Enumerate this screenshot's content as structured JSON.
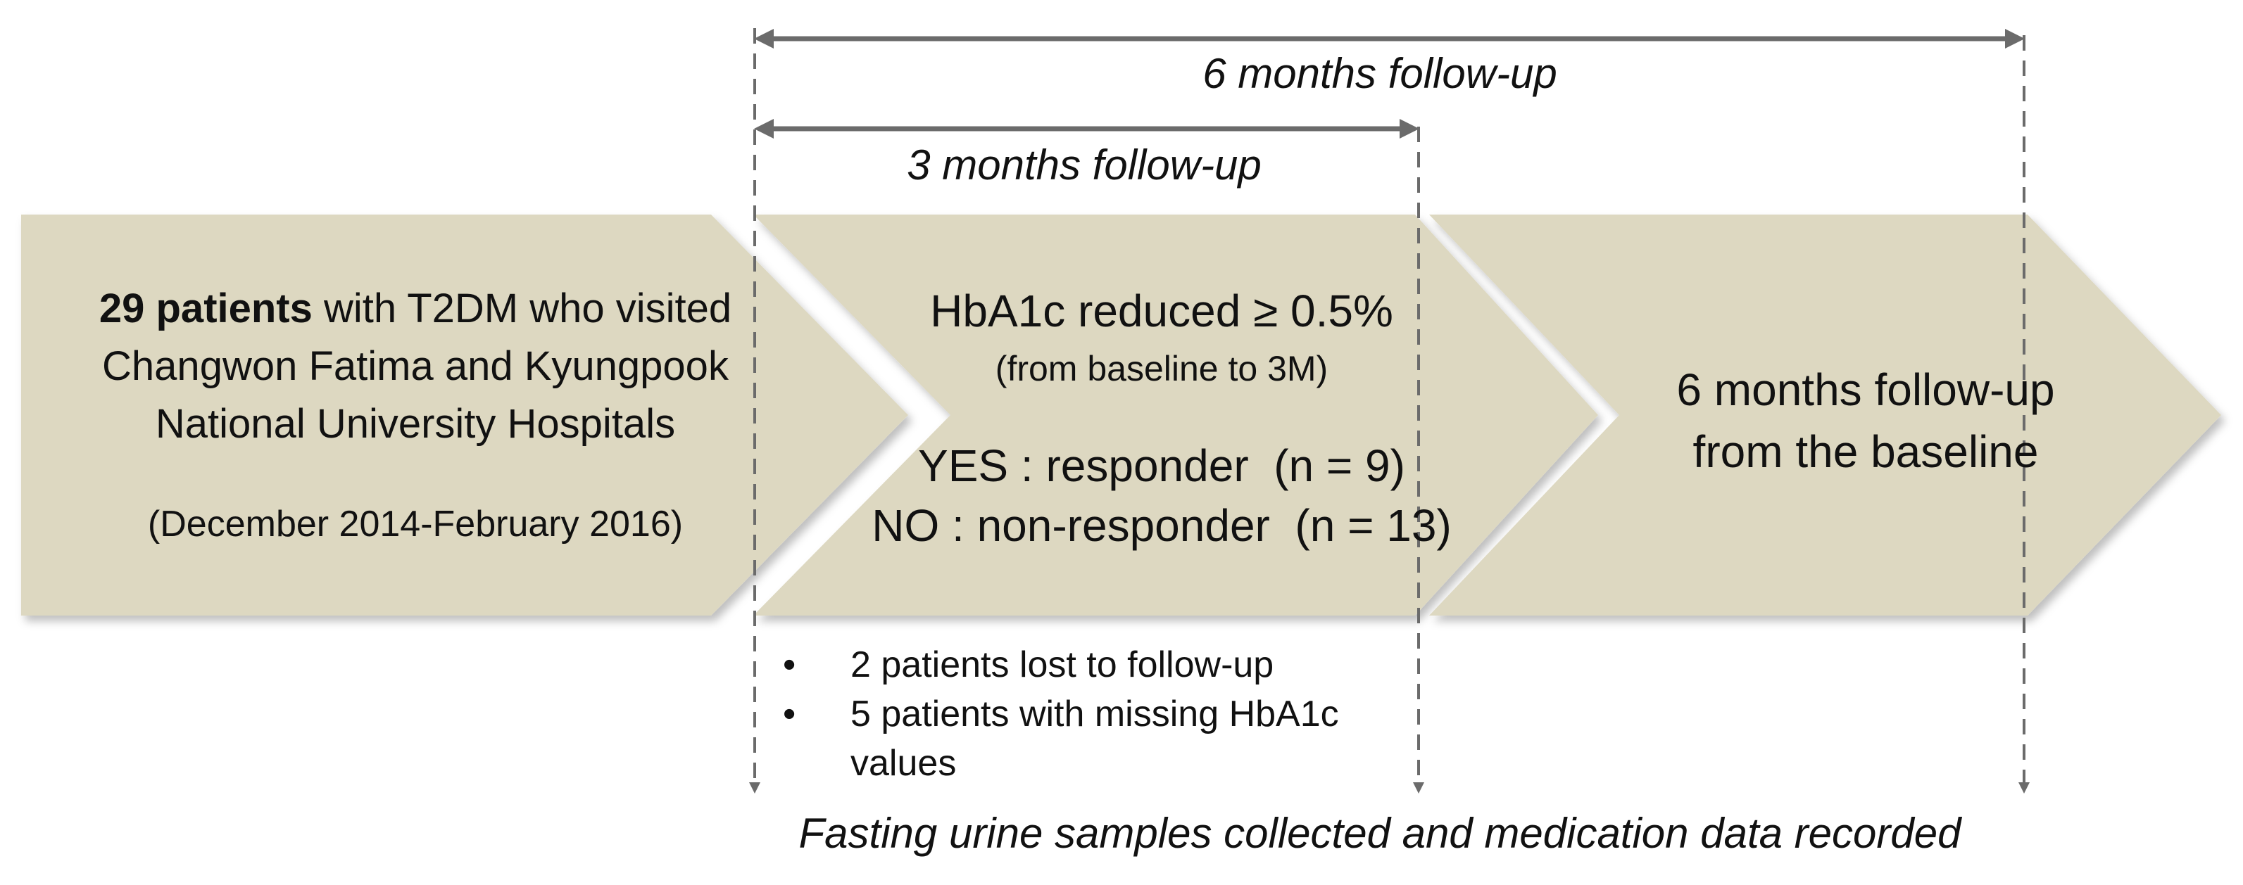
{
  "timeline": {
    "six_month_label": "6 months follow-up",
    "three_month_label": "3 months follow-up"
  },
  "steps": [
    {
      "title_bold": "29 patients",
      "title_rest": " with T2DM who visited",
      "line2": "Changwon Fatima and Kyungpook",
      "line3": "National University Hospitals",
      "dates": "(December 2014-February 2016)"
    },
    {
      "criterion": "HbA1c reduced ≥ 0.5%",
      "criterion_note": "(from baseline to 3M)",
      "yes_line": "YES : responder  (n = 9)",
      "no_line": "NO : non-responder  (n = 13)"
    },
    {
      "line1": "6 months follow-up",
      "line2": "from the baseline"
    }
  ],
  "exclusions": [
    {
      "bullet": "•",
      "text": "2 patients lost to follow-up"
    },
    {
      "bullet": "•",
      "text": "5 patients with missing HbA1c values"
    }
  ],
  "footer": {
    "note": "Fasting urine samples collected and medication data recorded"
  },
  "colors": {
    "chevron_fill": "#ddd8c1",
    "arrow": "#6b6b6b",
    "text": "#111111"
  }
}
